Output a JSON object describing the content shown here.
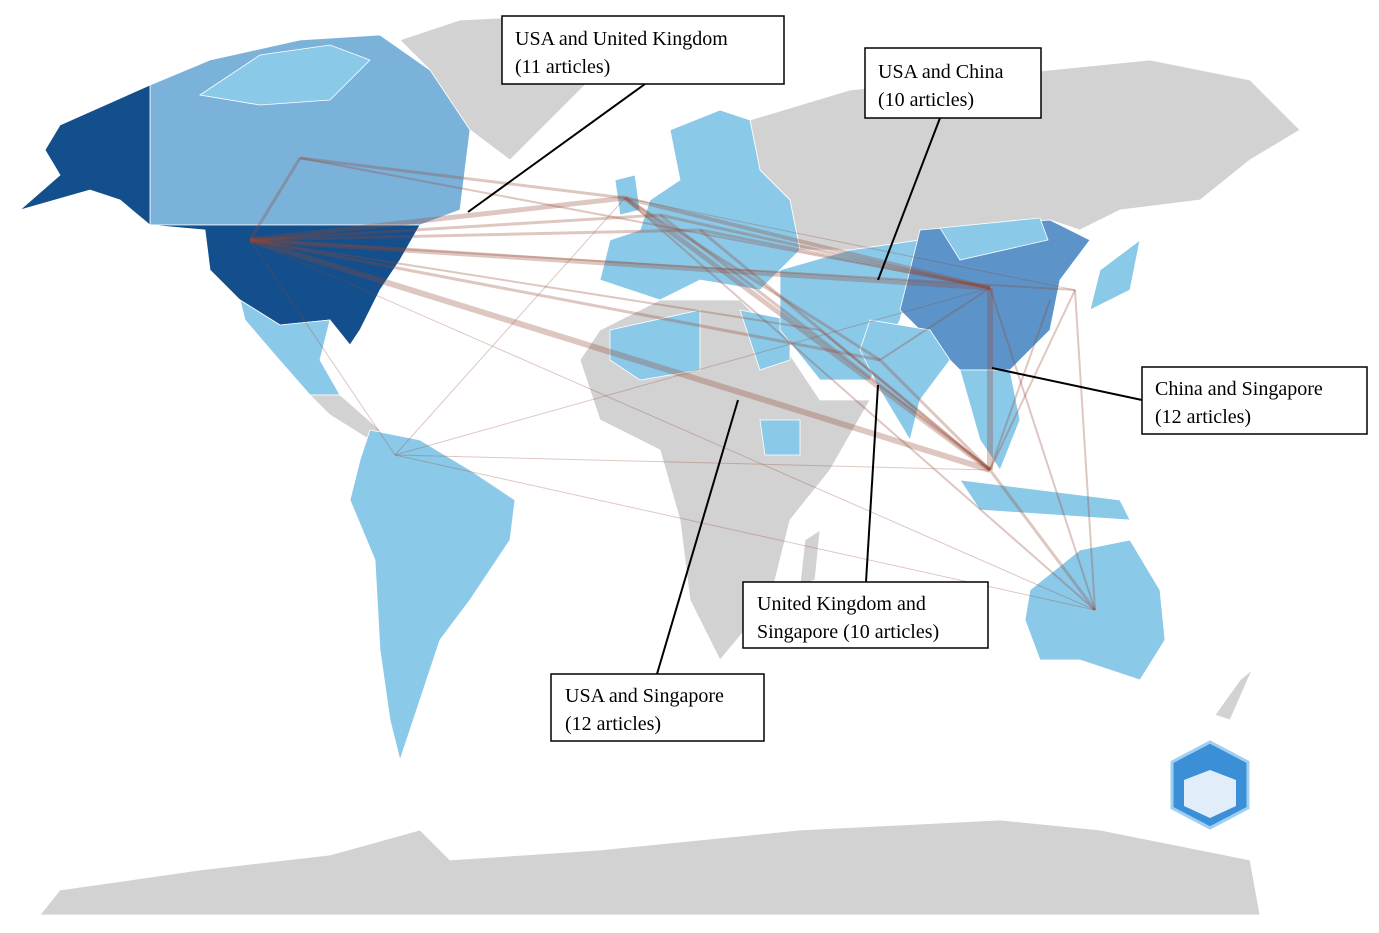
{
  "annotations": [
    {
      "lines": [
        "USA and United Kingdom",
        "(11 articles)"
      ]
    },
    {
      "lines": [
        "USA and China",
        "(10 articles)"
      ]
    },
    {
      "lines": [
        "China and Singapore",
        "(12 articles)"
      ]
    },
    {
      "lines": [
        "United Kingdom and",
        "Singapore (10 articles)"
      ]
    },
    {
      "lines": [
        "USA and Singapore",
        "(12 articles)"
      ]
    }
  ]
}
